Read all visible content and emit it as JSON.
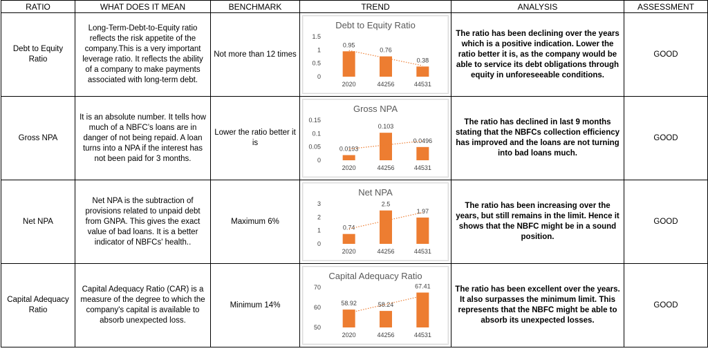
{
  "headers": [
    "RATIO",
    "WHAT DOES IT MEAN",
    "BENCHMARK",
    "TREND",
    "ANALYSIS",
    "ASSESSMENT"
  ],
  "rows": [
    {
      "ratio": "Debt to Equity Ratio",
      "meaning": "Long-Term-Debt-to-Equity ratio reflects the risk appetite of the company.This is a very important leverage ratio. It reflects the ability of a company to make payments associated with long-term debt.",
      "benchmark": "Not more than 12 times",
      "analysis": "The ratio has been declining over the years which is a positive indication. Lower the ratio better it is, as the company would be able to service its debt obligations through equity in unforeseeable conditions.",
      "assessment": "GOOD"
    },
    {
      "ratio": "Gross NPA",
      "meaning": "It is an absolute number. It tells how much of a NBFC’s loans are in danger of not being repaid. A loan turns into a NPA if the interest has not been paid for 3 months.",
      "benchmark": "Lower the ratio better it is",
      "analysis": "The ratio has declined in last 9 months stating that the NBFCs collection efficiency has improved and the loans are not turning into bad loans much.",
      "assessment": "GOOD"
    },
    {
      "ratio": "Net NPA",
      "meaning": "Net NPA is the subtraction of provisions related to unpaid debt from GNPA. This gives the exact value of bad loans. It is a better indicator of NBFCs' health..",
      "benchmark": "Maximum 6%",
      "analysis": "The ratio has been increasing over the years, but still remains in the limit. Hence it shows that the NBFC might be in a sound position.",
      "assessment": "GOOD"
    },
    {
      "ratio": "Capital Adequacy Ratio",
      "meaning": "Capital Adequacy Ratio (CAR) is a measure of the degree to which the company's capital is available to absorb unexpected loss.",
      "benchmark": "Minimum 14%",
      "analysis": "The ratio has been excellent over the years. It also surpasses the minimum limit. This represents that the NBFC might be able to absorb its unexpected losses.",
      "assessment": "GOOD"
    }
  ],
  "chart_data": [
    {
      "type": "bar",
      "title": "Debt to Equity Ratio",
      "categories": [
        "2020",
        "44256",
        "44531"
      ],
      "values": [
        0.95,
        0.76,
        0.38
      ],
      "value_labels": [
        "0.95",
        "0.76",
        "0.38"
      ],
      "yticks": [
        "0",
        "0.5",
        "1",
        "1.5"
      ],
      "ylim": [
        0,
        1.5
      ],
      "trendline": "linear dotted",
      "bar_color": "#ED7D31"
    },
    {
      "type": "bar",
      "title": "Gross NPA",
      "categories": [
        "2020",
        "44256",
        "44531"
      ],
      "values": [
        0.0193,
        0.103,
        0.0496
      ],
      "value_labels": [
        "0.0193",
        "0.103",
        "0.0496"
      ],
      "yticks": [
        "0",
        "0.05",
        "0.1",
        "0.15"
      ],
      "ylim": [
        0,
        0.15
      ],
      "trendline": "linear dotted",
      "bar_color": "#ED7D31"
    },
    {
      "type": "bar",
      "title": "Net NPA",
      "categories": [
        "2020",
        "44256",
        "44531"
      ],
      "values": [
        0.74,
        2.5,
        1.97
      ],
      "value_labels": [
        "0.74",
        "2.5",
        "1.97"
      ],
      "yticks": [
        "0",
        "1",
        "2",
        "3"
      ],
      "ylim": [
        0,
        3
      ],
      "trendline": "linear dotted",
      "bar_color": "#ED7D31"
    },
    {
      "type": "bar",
      "title": "Capital Adequacy Ratio",
      "categories": [
        "2020",
        "44256",
        "44531"
      ],
      "values": [
        58.92,
        58.24,
        67.41
      ],
      "value_labels": [
        "58.92",
        "58.24",
        "67.41"
      ],
      "yticks": [
        "50",
        "60",
        "70"
      ],
      "ylim": [
        50,
        70
      ],
      "trendline": "linear dotted",
      "bar_color": "#ED7D31"
    }
  ]
}
